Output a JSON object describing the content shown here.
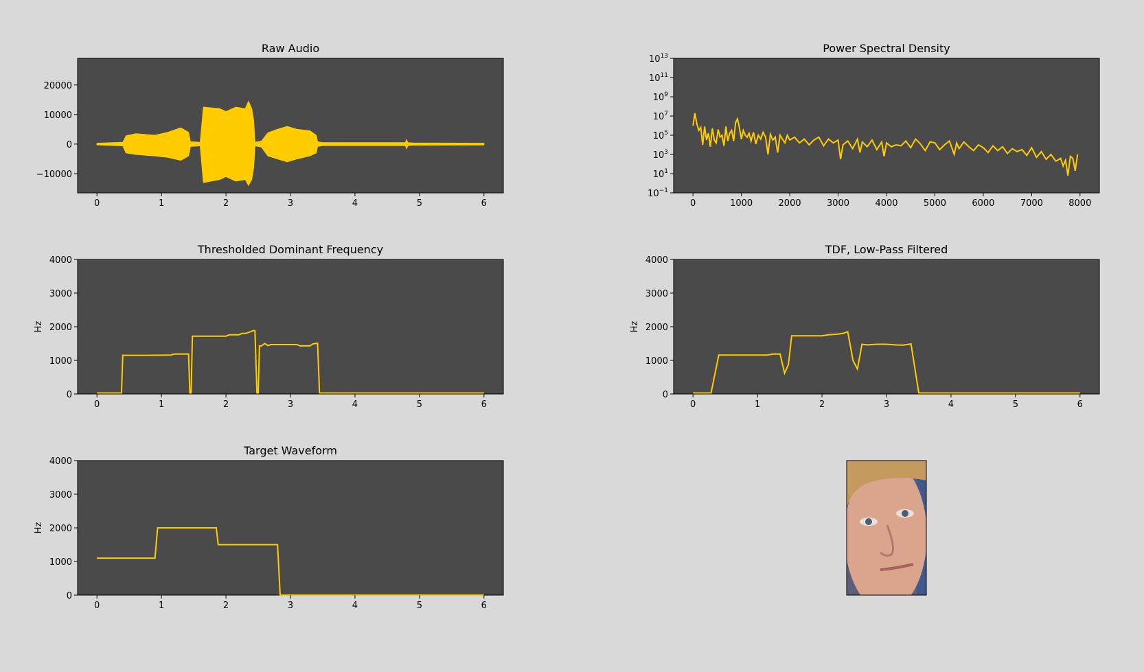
{
  "colors": {
    "figure_background": "#d9d9d9",
    "axes_background": "#4a4a4a",
    "line": "#ffcc00",
    "photo_background": "#5b5f7a",
    "skin": "#d9a58c"
  },
  "photo": {
    "icon": "face-photo",
    "description_visible": false
  },
  "chart_data": [
    {
      "id": "raw-audio",
      "type": "line",
      "title": "Raw Audio",
      "xlabel": "",
      "ylabel": "",
      "xlim": [
        -0.3,
        6.3
      ],
      "ylim": [
        -16500,
        29000
      ],
      "xticks": [
        0,
        1,
        2,
        3,
        4,
        5,
        6
      ],
      "xtick_labels": [
        "0",
        "1",
        "2",
        "3",
        "4",
        "5",
        "6"
      ],
      "yticks": [
        -10000,
        0,
        10000,
        20000
      ],
      "ytick_labels": [
        "−10000",
        "0",
        "10000",
        "20000"
      ],
      "envelope": {
        "t": [
          0,
          0.4,
          0.45,
          0.6,
          0.9,
          1.1,
          1.3,
          1.42,
          1.45,
          1.6,
          1.65,
          1.9,
          2.0,
          2.15,
          2.3,
          2.35,
          2.4,
          2.43,
          2.45,
          2.55,
          2.65,
          2.8,
          2.95,
          3.1,
          3.3,
          3.4,
          3.42,
          3.5,
          4.78,
          4.8,
          4.82,
          4.9,
          6.0
        ],
        "upper": [
          300,
          600,
          2800,
          3500,
          3000,
          4000,
          5500,
          4000,
          800,
          600,
          12500,
          12000,
          11000,
          12500,
          12000,
          14500,
          12000,
          8000,
          600,
          1000,
          3800,
          5000,
          6000,
          5000,
          4500,
          3000,
          800,
          500,
          500,
          1500,
          500,
          400,
          300
        ],
        "lower": [
          -300,
          -600,
          -3000,
          -3500,
          -4000,
          -4500,
          -5500,
          -4000,
          -800,
          -600,
          -13000,
          -12000,
          -11000,
          -12500,
          -12000,
          -14000,
          -12000,
          -8000,
          -600,
          -1000,
          -4000,
          -5000,
          -6000,
          -5000,
          -4000,
          -3000,
          -800,
          -500,
          -500,
          -1500,
          -500,
          -400,
          -300
        ]
      }
    },
    {
      "id": "power-spectral-density",
      "type": "line",
      "title": "Power Spectral Density",
      "xlabel": "",
      "ylabel": "",
      "yscale": "log",
      "xlim": [
        -400,
        8400
      ],
      "ylim_log10": [
        -1,
        13
      ],
      "xticks": [
        0,
        1000,
        2000,
        3000,
        4000,
        5000,
        6000,
        7000,
        8000
      ],
      "xtick_labels": [
        "0",
        "1000",
        "2000",
        "3000",
        "4000",
        "5000",
        "6000",
        "7000",
        "8000"
      ],
      "yticks_log10": [
        -1,
        1,
        3,
        5,
        7,
        9,
        11,
        13
      ],
      "ytick_labels": [
        {
          "base": "10",
          "exp": "−1"
        },
        {
          "base": "10",
          "exp": "1"
        },
        {
          "base": "10",
          "exp": "3"
        },
        {
          "base": "10",
          "exp": "5"
        },
        {
          "base": "10",
          "exp": "7"
        },
        {
          "base": "10",
          "exp": "9"
        },
        {
          "base": "10",
          "exp": "11"
        },
        {
          "base": "10",
          "exp": "13"
        }
      ],
      "x": [
        0,
        40,
        80,
        120,
        160,
        200,
        240,
        280,
        320,
        360,
        400,
        440,
        480,
        520,
        560,
        600,
        640,
        680,
        720,
        760,
        800,
        840,
        880,
        920,
        960,
        1000,
        1040,
        1080,
        1120,
        1160,
        1200,
        1250,
        1300,
        1350,
        1400,
        1450,
        1500,
        1550,
        1600,
        1650,
        1700,
        1750,
        1800,
        1850,
        1900,
        1950,
        2000,
        2100,
        2200,
        2300,
        2400,
        2500,
        2600,
        2700,
        2800,
        2900,
        3000,
        3050,
        3100,
        3200,
        3300,
        3400,
        3450,
        3500,
        3600,
        3700,
        3800,
        3900,
        3950,
        4000,
        4100,
        4200,
        4300,
        4400,
        4500,
        4600,
        4700,
        4800,
        4900,
        5000,
        5100,
        5200,
        5300,
        5400,
        5450,
        5500,
        5600,
        5700,
        5800,
        5900,
        6000,
        6100,
        6200,
        6300,
        6400,
        6500,
        6600,
        6700,
        6800,
        6900,
        7000,
        7100,
        7200,
        7300,
        7400,
        7500,
        7600,
        7650,
        7700,
        7750,
        7800,
        7850,
        7900,
        7950
      ],
      "log10_y": [
        6.0,
        7.3,
        6.2,
        5.5,
        5.8,
        4.0,
        5.9,
        4.5,
        5.2,
        3.8,
        5.7,
        4.5,
        4.2,
        5.6,
        4.8,
        5.0,
        3.9,
        5.9,
        4.4,
        5.2,
        5.5,
        4.4,
        6.3,
        6.7,
        5.8,
        4.6,
        5.5,
        5.0,
        4.8,
        5.2,
        4.4,
        5.3,
        4.1,
        5.0,
        4.6,
        5.3,
        4.8,
        3.0,
        5.1,
        4.5,
        4.8,
        3.2,
        5.0,
        4.6,
        4.2,
        5.0,
        4.5,
        4.8,
        4.2,
        4.6,
        4.0,
        4.5,
        4.8,
        3.9,
        4.6,
        4.2,
        4.5,
        2.5,
        4.0,
        4.4,
        3.6,
        4.6,
        3.2,
        4.3,
        3.8,
        4.5,
        3.5,
        4.3,
        2.8,
        4.2,
        3.8,
        4.0,
        3.9,
        4.4,
        3.7,
        4.6,
        4.1,
        3.4,
        4.3,
        4.2,
        3.5,
        4.0,
        4.4,
        3.0,
        4.2,
        3.6,
        4.3,
        3.8,
        3.4,
        4.0,
        3.7,
        3.2,
        3.9,
        3.4,
        3.8,
        3.1,
        3.6,
        3.3,
        3.5,
        2.9,
        3.7,
        2.7,
        3.3,
        2.5,
        3.0,
        2.3,
        2.6,
        1.8,
        2.4,
        0.8,
        2.8,
        2.6,
        1.3,
        3.0,
        2.2,
        2.6
      ]
    },
    {
      "id": "thresholded-dominant-frequency",
      "type": "line",
      "title": "Thresholded Dominant Frequency",
      "xlabel": "",
      "ylabel": "Hz",
      "xlim": [
        -0.3,
        6.3
      ],
      "ylim": [
        0,
        4000
      ],
      "xticks": [
        0,
        1,
        2,
        3,
        4,
        5,
        6
      ],
      "xtick_labels": [
        "0",
        "1",
        "2",
        "3",
        "4",
        "5",
        "6"
      ],
      "yticks": [
        0,
        1000,
        2000,
        3000,
        4000
      ],
      "ytick_labels": [
        "0",
        "1000",
        "2000",
        "3000",
        "4000"
      ],
      "x": [
        0,
        0.38,
        0.4,
        0.8,
        1.15,
        1.2,
        1.42,
        1.44,
        1.46,
        1.48,
        1.5,
        1.85,
        2.0,
        2.05,
        2.2,
        2.25,
        2.3,
        2.35,
        2.43,
        2.45,
        2.48,
        2.5,
        2.52,
        2.55,
        2.6,
        2.65,
        2.7,
        2.8,
        3.1,
        3.15,
        3.3,
        3.35,
        3.42,
        3.45,
        3.5,
        6.0
      ],
      "y": [
        30,
        30,
        1150,
        1150,
        1160,
        1190,
        1190,
        30,
        30,
        1720,
        1720,
        1720,
        1720,
        1760,
        1760,
        1800,
        1800,
        1830,
        1890,
        1880,
        30,
        30,
        1430,
        1430,
        1500,
        1440,
        1470,
        1470,
        1470,
        1430,
        1430,
        1490,
        1510,
        30,
        30,
        30
      ]
    },
    {
      "id": "tdf-low-pass-filtered",
      "type": "line",
      "title": "TDF, Low-Pass Filtered",
      "xlabel": "",
      "ylabel": "Hz",
      "xlim": [
        -0.3,
        6.3
      ],
      "ylim": [
        0,
        4000
      ],
      "xticks": [
        0,
        1,
        2,
        3,
        4,
        5,
        6
      ],
      "xtick_labels": [
        "0",
        "1",
        "2",
        "3",
        "4",
        "5",
        "6"
      ],
      "yticks": [
        0,
        1000,
        2000,
        3000,
        4000
      ],
      "ytick_labels": [
        "0",
        "1000",
        "2000",
        "3000",
        "4000"
      ],
      "x": [
        0,
        0.28,
        0.4,
        1.0,
        1.15,
        1.25,
        1.35,
        1.42,
        1.48,
        1.53,
        1.7,
        1.9,
        2.0,
        2.1,
        2.25,
        2.32,
        2.4,
        2.48,
        2.55,
        2.62,
        2.7,
        2.85,
        3.0,
        3.15,
        3.25,
        3.38,
        3.5,
        3.55,
        6.0
      ],
      "y": [
        30,
        30,
        1160,
        1160,
        1160,
        1190,
        1190,
        620,
        880,
        1730,
        1730,
        1730,
        1730,
        1760,
        1780,
        1800,
        1850,
        1000,
        740,
        1480,
        1460,
        1480,
        1480,
        1460,
        1450,
        1490,
        30,
        30,
        30
      ]
    },
    {
      "id": "target-waveform",
      "type": "line",
      "title": "Target Waveform",
      "xlabel": "",
      "ylabel": "Hz",
      "xlim": [
        -0.3,
        6.3
      ],
      "ylim": [
        0,
        4000
      ],
      "xticks": [
        0,
        1,
        2,
        3,
        4,
        5,
        6
      ],
      "xtick_labels": [
        "0",
        "1",
        "2",
        "3",
        "4",
        "5",
        "6"
      ],
      "yticks": [
        0,
        1000,
        2000,
        3000,
        4000
      ],
      "ytick_labels": [
        "0",
        "1000",
        "2000",
        "3000",
        "4000"
      ],
      "x": [
        0,
        0.9,
        0.94,
        1.85,
        1.88,
        2.8,
        2.84,
        6.0
      ],
      "y": [
        1100,
        1100,
        2000,
        2000,
        1500,
        1500,
        0,
        0
      ]
    }
  ]
}
